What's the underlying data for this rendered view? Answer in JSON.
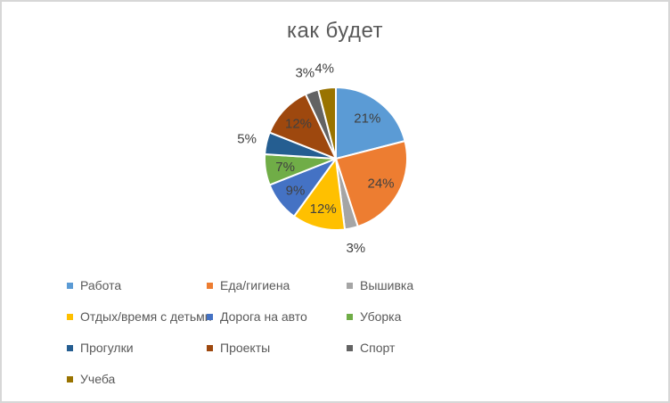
{
  "chart_data": {
    "type": "pie",
    "title": "как будет",
    "categories": [
      "Работа",
      "Еда/гигиена",
      "Вышивка",
      "Отдых/время с детьми",
      "Дорога на авто",
      "Уборка",
      "Прогулки",
      "Проекты",
      "Спорт",
      "Учеба"
    ],
    "values": [
      21,
      24,
      3,
      12,
      9,
      7,
      5,
      12,
      3,
      4
    ],
    "data_labels": [
      "21%",
      "24%",
      "3%",
      "12%",
      "9%",
      "7%",
      "5%",
      "12%",
      "3%",
      "4%"
    ],
    "colors": [
      "#5B9BD5",
      "#ED7D31",
      "#A5A5A5",
      "#FFC000",
      "#4472C4",
      "#70AD47",
      "#255E91",
      "#9E480E",
      "#636363",
      "#997300"
    ],
    "start_angle_deg": 0,
    "direction": "clockwise",
    "legend_position": "bottom",
    "legend_columns": 3,
    "label_placement": "inside for slices >= 6%, outside for smaller",
    "slice_border_color": "#FFFFFF",
    "title_color": "#595959",
    "label_color": "#404040",
    "legend_text_color": "#595959",
    "frame_border_color": "#D7D7D7",
    "background_color": "#FFFFFF"
  }
}
